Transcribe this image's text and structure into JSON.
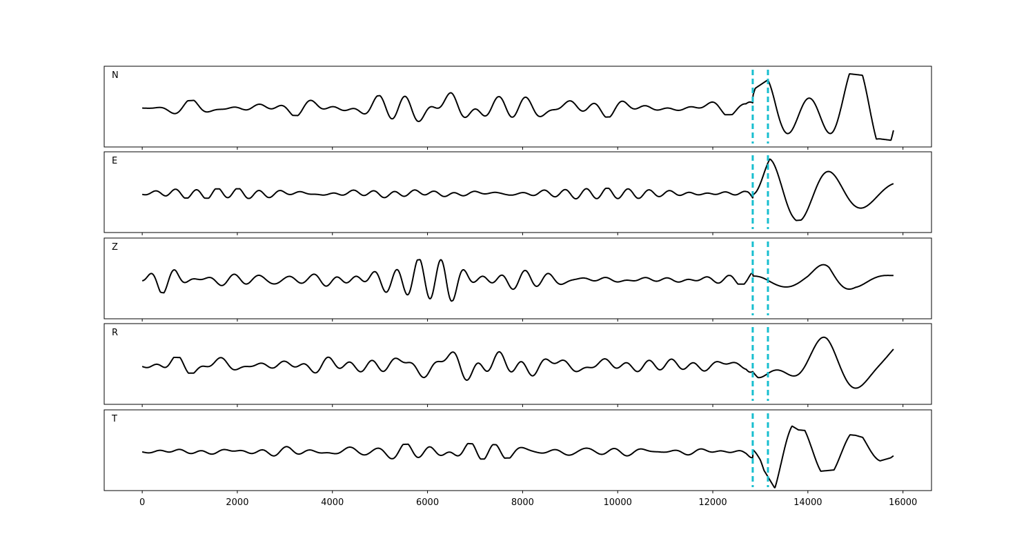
{
  "chart_data": {
    "type": "line",
    "title": "",
    "xlabel": "",
    "ylabel": "",
    "xlim": [
      -800,
      16600
    ],
    "x_ticks": [
      0,
      2000,
      4000,
      6000,
      8000,
      10000,
      12000,
      14000,
      16000
    ],
    "x_tick_labels": [
      "0",
      "2000",
      "4000",
      "6000",
      "8000",
      "10000",
      "12000",
      "14000",
      "16000"
    ],
    "sample_range": [
      0,
      15800
    ],
    "grid": false,
    "marker_color": "#17becf",
    "trace_color": "#000000",
    "vertical_markers": [
      12840,
      13160
    ],
    "panels": [
      {
        "label": "N",
        "envelope": [
          {
            "x": 0,
            "amp": 0.05
          },
          {
            "x": 400,
            "amp": 0.15
          },
          {
            "x": 1200,
            "amp": 0.22
          },
          {
            "x": 3000,
            "amp": 0.2
          },
          {
            "x": 4500,
            "amp": 0.25
          },
          {
            "x": 5200,
            "amp": 0.38
          },
          {
            "x": 6500,
            "amp": 0.48
          },
          {
            "x": 7500,
            "amp": 0.32
          },
          {
            "x": 9000,
            "amp": 0.28
          },
          {
            "x": 11000,
            "amp": 0.2
          },
          {
            "x": 12700,
            "amp": 0.18
          },
          {
            "x": 12900,
            "amp": 0.55
          },
          {
            "x": 13300,
            "amp": 0.9
          },
          {
            "x": 14500,
            "amp": 1.0
          },
          {
            "x": 15500,
            "amp": 0.85
          },
          {
            "x": 15800,
            "amp": 0.9
          }
        ]
      },
      {
        "label": "E",
        "envelope": [
          {
            "x": 0,
            "amp": 0.05
          },
          {
            "x": 500,
            "amp": 0.12
          },
          {
            "x": 3000,
            "amp": 0.14
          },
          {
            "x": 5500,
            "amp": 0.22
          },
          {
            "x": 6500,
            "amp": 0.26
          },
          {
            "x": 8000,
            "amp": 0.18
          },
          {
            "x": 11000,
            "amp": 0.12
          },
          {
            "x": 12700,
            "amp": 0.12
          },
          {
            "x": 12900,
            "amp": 0.3
          },
          {
            "x": 13200,
            "amp": 1.0
          },
          {
            "x": 13700,
            "amp": 0.75
          },
          {
            "x": 15000,
            "amp": 0.6
          },
          {
            "x": 15800,
            "amp": 0.55
          }
        ]
      },
      {
        "label": "Z",
        "envelope": [
          {
            "x": 0,
            "amp": 0.05
          },
          {
            "x": 400,
            "amp": 0.35
          },
          {
            "x": 700,
            "amp": 0.4
          },
          {
            "x": 1200,
            "amp": 0.18
          },
          {
            "x": 3500,
            "amp": 0.15
          },
          {
            "x": 4600,
            "amp": 0.4
          },
          {
            "x": 5500,
            "amp": 0.5
          },
          {
            "x": 6400,
            "amp": 0.65
          },
          {
            "x": 7000,
            "amp": 0.3
          },
          {
            "x": 9000,
            "amp": 0.22
          },
          {
            "x": 11000,
            "amp": 0.12
          },
          {
            "x": 12700,
            "amp": 0.12
          },
          {
            "x": 13200,
            "amp": 0.35
          },
          {
            "x": 14000,
            "amp": 0.45
          },
          {
            "x": 14450,
            "amp": 1.0
          },
          {
            "x": 15000,
            "amp": 0.5
          },
          {
            "x": 15800,
            "amp": 0.55
          }
        ]
      },
      {
        "label": "R",
        "envelope": [
          {
            "x": 0,
            "amp": 0.05
          },
          {
            "x": 500,
            "amp": 0.22
          },
          {
            "x": 3000,
            "amp": 0.2
          },
          {
            "x": 4500,
            "amp": 0.25
          },
          {
            "x": 5500,
            "amp": 0.4
          },
          {
            "x": 6600,
            "amp": 0.42
          },
          {
            "x": 8000,
            "amp": 0.35
          },
          {
            "x": 10000,
            "amp": 0.25
          },
          {
            "x": 12700,
            "amp": 0.2
          },
          {
            "x": 12950,
            "amp": 0.75
          },
          {
            "x": 13500,
            "amp": 0.8
          },
          {
            "x": 14400,
            "amp": 1.0
          },
          {
            "x": 15500,
            "amp": 0.8
          },
          {
            "x": 15800,
            "amp": 0.95
          }
        ]
      },
      {
        "label": "T",
        "envelope": [
          {
            "x": 0,
            "amp": 0.05
          },
          {
            "x": 500,
            "amp": 0.12
          },
          {
            "x": 3000,
            "amp": 0.14
          },
          {
            "x": 5500,
            "amp": 0.2
          },
          {
            "x": 6500,
            "amp": 0.24
          },
          {
            "x": 8000,
            "amp": 0.16
          },
          {
            "x": 11000,
            "amp": 0.1
          },
          {
            "x": 12700,
            "amp": 0.12
          },
          {
            "x": 13000,
            "amp": 0.35
          },
          {
            "x": 13300,
            "amp": 1.0
          },
          {
            "x": 13800,
            "amp": 0.6
          },
          {
            "x": 15000,
            "amp": 0.45
          },
          {
            "x": 15800,
            "amp": 0.15
          }
        ]
      }
    ]
  }
}
